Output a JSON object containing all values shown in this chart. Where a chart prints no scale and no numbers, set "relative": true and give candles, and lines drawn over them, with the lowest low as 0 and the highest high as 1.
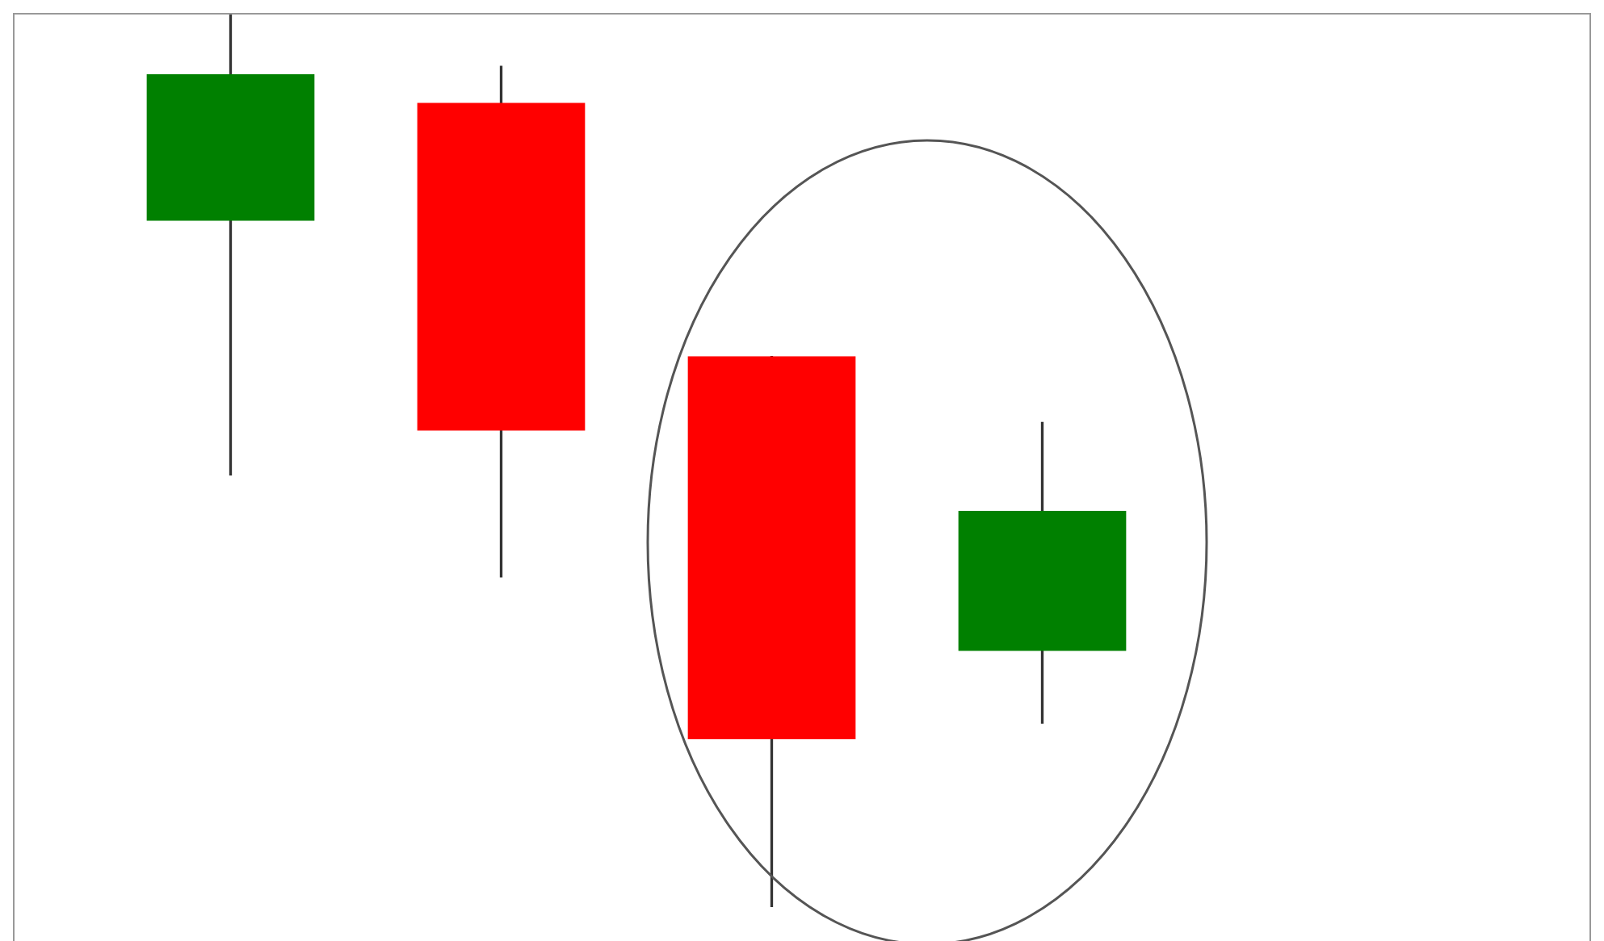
{
  "chart_data": {
    "type": "candlestick",
    "relative": true,
    "categories": [
      null,
      null,
      null,
      null
    ],
    "ohlc": [
      [
        0.769,
        1,
        0.484,
        0.933
      ],
      [
        0.901,
        0.942,
        0.37,
        0.534
      ],
      [
        0.617,
        0.617,
        0,
        0.188
      ],
      [
        0.287,
        0.543,
        0.206,
        0.444
      ]
    ],
    "colors": [
      "#008000",
      "#ff0000",
      "#ff0000",
      "#008000"
    ]
  }
}
